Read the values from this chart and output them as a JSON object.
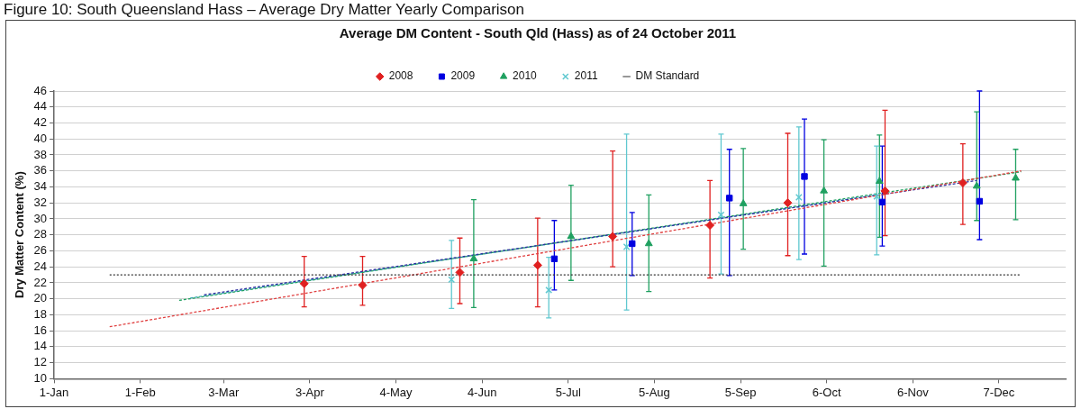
{
  "chart_data": {
    "type": "scatter",
    "title": "Average DM Content - South Qld (Hass) as of 24 October 2011",
    "ylabel": "Dry Matter Content (%)",
    "annotations": [
      "Figure 10: South Queensland Hass – Average Dry Matter Yearly Comparison"
    ],
    "xlim": [
      "--01-01",
      "--12-31"
    ],
    "xticks": [
      {
        "value": "--01-01",
        "label": "1-Jan"
      },
      {
        "value": "--02-01",
        "label": "1-Feb"
      },
      {
        "value": "--03-03",
        "label": "3-Mar"
      },
      {
        "value": "--04-03",
        "label": "3-Apr"
      },
      {
        "value": "--05-04",
        "label": "4-May"
      },
      {
        "value": "--06-04",
        "label": "4-Jun"
      },
      {
        "value": "--07-05",
        "label": "5-Jul"
      },
      {
        "value": "--08-05",
        "label": "5-Aug"
      },
      {
        "value": "--09-05",
        "label": "5-Sep"
      },
      {
        "value": "--10-06",
        "label": "6-Oct"
      },
      {
        "value": "--11-06",
        "label": "6-Nov"
      },
      {
        "value": "--12-07",
        "label": "7-Dec"
      }
    ],
    "ylim": [
      10,
      46
    ],
    "yticks": [
      10,
      12,
      14,
      16,
      18,
      20,
      22,
      24,
      26,
      28,
      30,
      32,
      34,
      36,
      38,
      40,
      42,
      44,
      46
    ],
    "grid": "y",
    "legend": "top",
    "series": [
      {
        "name": "2008",
        "color": "#e02020",
        "marker": "diamond",
        "x": [
          "--04-01",
          "--04-22",
          "--05-27",
          "--06-24",
          "--07-21",
          "--08-25",
          "--09-22",
          "--10-27",
          "--11-24"
        ],
        "values": [
          21.9,
          21.7,
          23.3,
          24.2,
          27.8,
          29.2,
          32.0,
          33.5,
          34.5
        ],
        "errors": [
          [
            19.0,
            25.3
          ],
          [
            19.2,
            25.3
          ],
          [
            19.4,
            27.6
          ],
          [
            19.0,
            30.1
          ],
          [
            24.0,
            38.5
          ],
          [
            22.6,
            34.8
          ],
          [
            25.4,
            40.7
          ],
          [
            27.9,
            43.6
          ],
          [
            29.3,
            39.4
          ]
        ]
      },
      {
        "name": "2009",
        "color": "#0000e0",
        "marker": "square",
        "x": [
          "--06-30",
          "--07-28",
          "--09-01",
          "--09-28",
          "--10-26",
          "--11-30"
        ],
        "values": [
          25.0,
          26.9,
          32.6,
          35.3,
          32.1,
          32.2
        ],
        "errors": [
          [
            21.1,
            29.8
          ],
          [
            22.9,
            30.8
          ],
          [
            22.9,
            38.7
          ],
          [
            25.6,
            42.5
          ],
          [
            26.6,
            39.1
          ],
          [
            27.4,
            46
          ]
        ]
      },
      {
        "name": "2010",
        "color": "#1fa060",
        "marker": "triangle",
        "x": [
          "--06-01",
          "--07-06",
          "--08-03",
          "--09-06",
          "--10-05",
          "--10-25",
          "--11-29",
          "--12-13"
        ],
        "values": [
          25.0,
          27.8,
          26.9,
          31.9,
          33.5,
          34.7,
          34.1,
          35.1
        ],
        "errors": [
          [
            18.9,
            32.4
          ],
          [
            22.3,
            34.2
          ],
          [
            20.9,
            33.0
          ],
          [
            26.2,
            38.8
          ],
          [
            24.1,
            39.9
          ],
          [
            27.7,
            40.5
          ],
          [
            29.8,
            43.4
          ],
          [
            29.9,
            38.7
          ]
        ]
      },
      {
        "name": "2011",
        "color": "#5fc8d0",
        "marker": "cross",
        "x": [
          "--05-24",
          "--06-28",
          "--07-26",
          "--08-29",
          "--09-26",
          "--10-24"
        ],
        "values": [
          22.4,
          21.1,
          26.5,
          30.5,
          32.7,
          32.8
        ],
        "errors": [
          [
            18.8,
            27.3
          ],
          [
            17.6,
            25.2
          ],
          [
            18.6,
            40.6
          ],
          [
            23.1,
            40.6
          ],
          [
            24.9,
            41.5
          ],
          [
            25.5,
            39.1
          ]
        ]
      },
      {
        "name": "DM Standard",
        "type": "line",
        "color": "#303030",
        "line_style": "dotted",
        "marker": "none",
        "x": [
          "--01-21",
          "--12-15"
        ],
        "values": [
          23,
          23
        ]
      },
      {
        "type": "line",
        "color": "#e04040",
        "line_style": "dashed",
        "marker": "none",
        "x": [
          "--01-21",
          "--12-15"
        ],
        "values": [
          16.5,
          36.0
        ]
      },
      {
        "type": "line",
        "color": "#3030a0",
        "line_style": "dashed",
        "marker": "none",
        "x": [
          "--02-24",
          "--11-29"
        ],
        "values": [
          20.5,
          34.8
        ]
      },
      {
        "type": "line",
        "color": "#1fa060",
        "line_style": "dashed",
        "marker": "none",
        "x": [
          "--02-15",
          "--12-15"
        ],
        "values": [
          19.8,
          35.9
        ]
      },
      {
        "type": "line",
        "color": "#40a8c0",
        "line_style": "dashed",
        "marker": "none",
        "x": [
          "--02-19",
          "--10-24"
        ],
        "values": [
          20.1,
          33.0
        ]
      }
    ]
  }
}
